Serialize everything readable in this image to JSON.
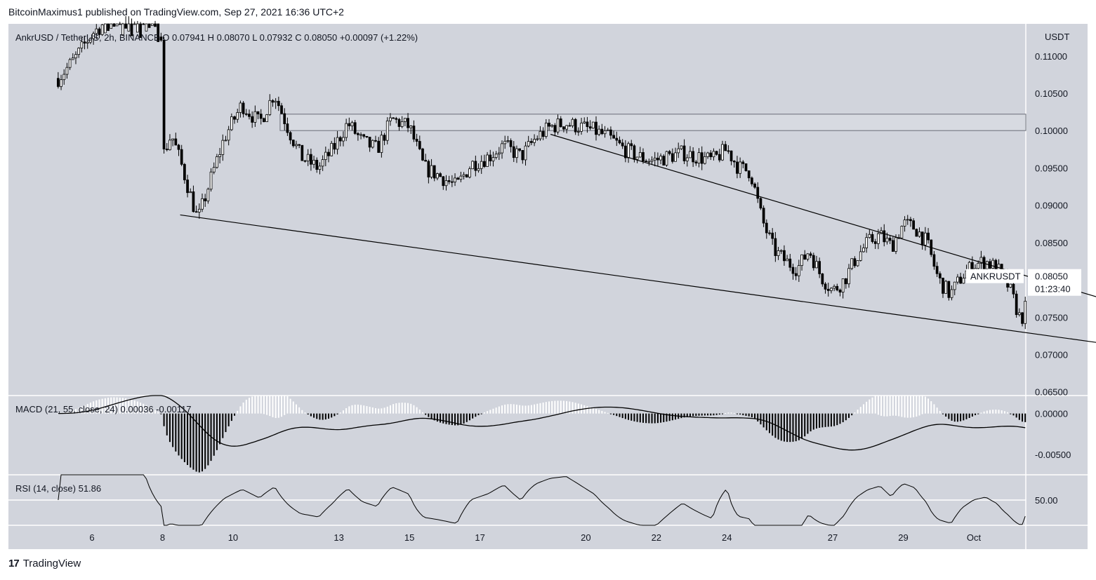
{
  "header": {
    "publisher": "BitcoinMaximus1 published on TradingView.com, Sep 27, 2021 16:36 UTC+2"
  },
  "footer": {
    "brand": "TradingView"
  },
  "colors": {
    "pane_bg": "#d1d4dc",
    "candle": "#000000",
    "wick": "#000000",
    "macd_positive": "#ffffff",
    "macd_negative": "#000000",
    "line": "#000000",
    "rsi_midline": "#ffffff",
    "label_bg": "#ffffff"
  },
  "chart_data": {
    "type": "candlestick",
    "symbol_line": {
      "pair": "AnkrUSD / TetherUS, 2h, BINANCE",
      "o_label": "O",
      "o": "0.07941",
      "h_label": "H",
      "h": "0.08070",
      "l_label": "L",
      "l": "0.07932",
      "c_label": "C",
      "c": "0.08050",
      "change": "+0.00097 (+1.22%)"
    },
    "price_axis_currency": "USDT",
    "price_ticks": [
      "0.11000",
      "0.10500",
      "0.10000",
      "0.09500",
      "0.09000",
      "0.08500",
      "0.08000",
      "0.07500",
      "0.07000",
      "0.06500"
    ],
    "ylim": [
      0.0645,
      0.1143
    ],
    "x_ticks": [
      "6",
      "8",
      "10",
      "13",
      "15",
      "17",
      "20",
      "22",
      "24",
      "27",
      "29",
      "Oct"
    ],
    "x_tick_dates": [
      "2021-09-06",
      "2021-09-08",
      "2021-09-10",
      "2021-09-13",
      "2021-09-15",
      "2021-09-17",
      "2021-09-20",
      "2021-09-22",
      "2021-09-24",
      "2021-09-27",
      "2021-09-29",
      "2021-10-01"
    ],
    "last_price_label": {
      "symbol": "ANKRUSDT",
      "price": "0.08050",
      "countdown": "01:23:40"
    },
    "close_path": [
      [
        "2021-09-05 01:00",
        0.107
      ],
      [
        "2021-09-05 12:00",
        0.1095
      ],
      [
        "2021-09-06 00:00",
        0.113
      ],
      [
        "2021-09-06 12:00",
        0.115
      ],
      [
        "2021-09-07 00:00",
        0.116
      ],
      [
        "2021-09-07 12:00",
        0.1155
      ],
      [
        "2021-09-08 00:00",
        0.113
      ],
      [
        "2021-09-08 01:00",
        0.097
      ],
      [
        "2021-09-08 06:00",
        0.0995
      ],
      [
        "2021-09-08 12:00",
        0.096
      ],
      [
        "2021-09-09 00:00",
        0.088
      ],
      [
        "2021-09-09 08:00",
        0.093
      ],
      [
        "2021-09-09 18:00",
        0.099
      ],
      [
        "2021-09-10 06:00",
        0.1035
      ],
      [
        "2021-09-10 18:00",
        0.101
      ],
      [
        "2021-09-11 04:00",
        0.105
      ],
      [
        "2021-09-11 14:00",
        0.1
      ],
      [
        "2021-09-11 22:00",
        0.0965
      ],
      [
        "2021-09-12 10:00",
        0.095
      ],
      [
        "2021-09-12 20:00",
        0.0975
      ],
      [
        "2021-09-13 06:00",
        0.101
      ],
      [
        "2021-09-13 16:00",
        0.0985
      ],
      [
        "2021-09-14 02:00",
        0.0975
      ],
      [
        "2021-09-14 12:00",
        0.1015
      ],
      [
        "2021-09-15 00:00",
        0.1005
      ],
      [
        "2021-09-15 10:00",
        0.095
      ],
      [
        "2021-09-15 20:00",
        0.094
      ],
      [
        "2021-09-16 08:00",
        0.0925
      ],
      [
        "2021-09-16 18:00",
        0.0955
      ],
      [
        "2021-09-17 06:00",
        0.0965
      ],
      [
        "2021-09-17 16:00",
        0.098
      ],
      [
        "2021-09-18 04:00",
        0.0965
      ],
      [
        "2021-09-18 14:00",
        0.099
      ],
      [
        "2021-09-19 00:00",
        0.1005
      ],
      [
        "2021-09-19 10:00",
        0.101
      ],
      [
        "2021-09-19 20:00",
        0.1005
      ],
      [
        "2021-09-20 06:00",
        0.1
      ],
      [
        "2021-09-20 16:00",
        0.099
      ],
      [
        "2021-09-21 02:00",
        0.0975
      ],
      [
        "2021-09-21 12:00",
        0.0965
      ],
      [
        "2021-09-21 22:00",
        0.096
      ],
      [
        "2021-09-22 08:00",
        0.0965
      ],
      [
        "2021-09-22 18:00",
        0.097
      ],
      [
        "2021-09-23 04:00",
        0.0965
      ],
      [
        "2021-09-23 14:00",
        0.096
      ],
      [
        "2021-09-24 00:00",
        0.0975
      ],
      [
        "2021-09-24 08:00",
        0.095
      ],
      [
        "2021-09-24 16:00",
        0.0945
      ],
      [
        "2021-09-25 00:00",
        0.088
      ],
      [
        "2021-09-25 08:00",
        0.084
      ],
      [
        "2021-09-25 16:00",
        0.0825
      ],
      [
        "2021-09-26 00:00",
        0.0815
      ],
      [
        "2021-09-26 08:00",
        0.084
      ],
      [
        "2021-09-26 16:00",
        0.0805
      ],
      [
        "2021-09-27 00:00",
        0.0785
      ],
      [
        "2021-09-27 08:00",
        0.08
      ],
      [
        "2021-09-27 16:00",
        0.083
      ],
      [
        "2021-09-28 00:00",
        0.085
      ],
      [
        "2021-09-28 08:00",
        0.086
      ],
      [
        "2021-09-28 16:00",
        0.0845
      ],
      [
        "2021-09-29 00:00",
        0.0875
      ],
      [
        "2021-09-29 08:00",
        0.087
      ],
      [
        "2021-09-29 16:00",
        0.085
      ],
      [
        "2021-09-30 00:00",
        0.08
      ],
      [
        "2021-09-30 08:00",
        0.078
      ],
      [
        "2021-09-30 16:00",
        0.0805
      ],
      [
        "2021-10-01 00:00",
        0.082
      ],
      [
        "2021-10-01 08:00",
        0.0825
      ],
      [
        "2021-10-01 16:00",
        0.0815
      ],
      [
        "2021-10-02 00:00",
        0.079
      ],
      [
        "2021-10-02 08:00",
        0.0745
      ],
      [
        "2021-10-02 16:00",
        0.079
      ],
      [
        "2021-10-03 00:00",
        0.0795
      ],
      [
        "2021-10-03 08:00",
        0.08
      ],
      [
        "2021-10-03 16:00",
        0.0805
      ]
    ],
    "resistance_box": {
      "from": "2021-09-11",
      "to": "right-edge",
      "low": 0.1,
      "high": 0.1022
    },
    "trendlines": [
      {
        "from": [
          "2021-09-08 12:00",
          0.0887
        ],
        "to": [
          "2021-10-04 12:00",
          0.0716
        ]
      },
      {
        "from": [
          "2021-09-19 00:00",
          0.0995
        ],
        "to": [
          "2021-10-04 12:00",
          0.0777
        ]
      }
    ],
    "macd": {
      "label": "MACD (21, 55, close, 24)",
      "values_text": [
        "0.00036",
        "-0.00117"
      ],
      "ticks": [
        "0.00000",
        "-0.00500"
      ],
      "ylim": [
        -0.0075,
        0.0022
      ]
    },
    "rsi": {
      "label": "RSI (14, close)",
      "value_text": "51.86",
      "ticks": [
        "50.00"
      ],
      "ylim": [
        15,
        85
      ]
    }
  }
}
